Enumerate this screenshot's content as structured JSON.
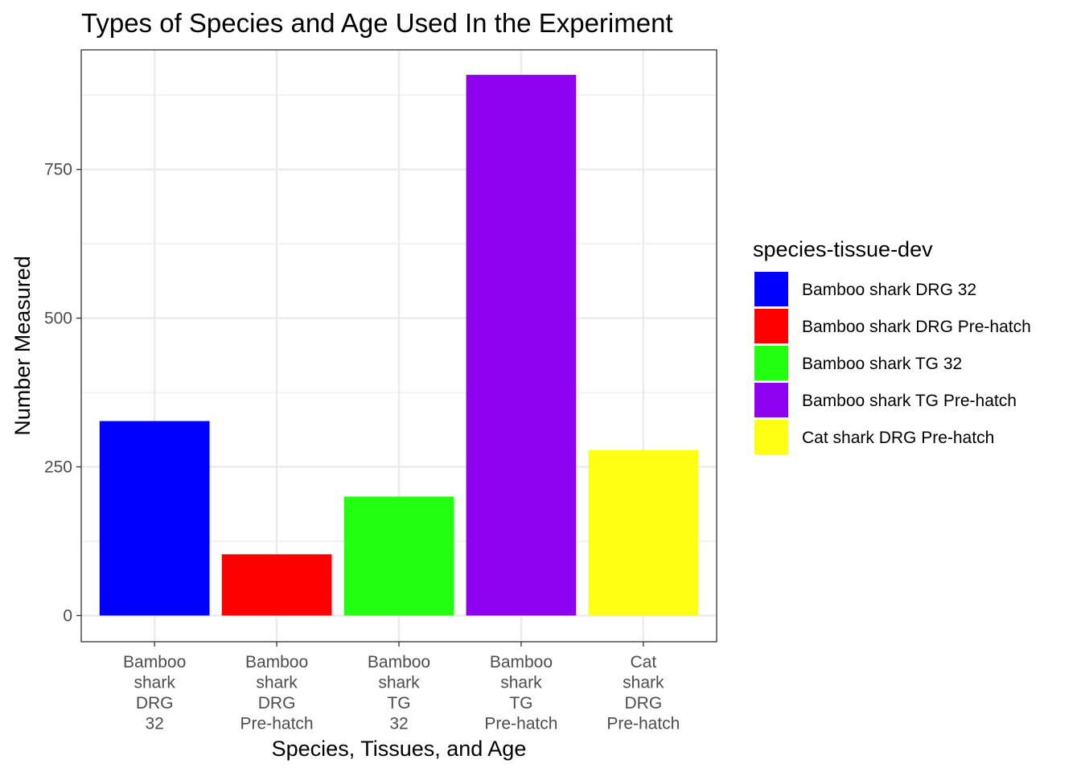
{
  "chart_data": {
    "type": "bar",
    "title": "Types of Species and Age Used In the Experiment",
    "xlabel": "Species, Tissues, and Age",
    "ylabel": "Number Measured",
    "categories": [
      "Bamboo shark DRG 32",
      "Bamboo shark DRG Pre-hatch",
      "Bamboo shark TG 32",
      "Bamboo shark TG Pre-hatch",
      "Cat shark DRG Pre-hatch"
    ],
    "category_tick_lines": [
      [
        "Bamboo",
        "shark",
        "DRG",
        "32"
      ],
      [
        "Bamboo",
        "shark",
        "DRG",
        "Pre-hatch"
      ],
      [
        "Bamboo",
        "shark",
        "TG",
        "32"
      ],
      [
        "Bamboo",
        "shark",
        "TG",
        "Pre-hatch"
      ],
      [
        "Cat",
        "shark",
        "DRG",
        "Pre-hatch"
      ]
    ],
    "values": [
      327,
      103,
      200,
      909,
      278
    ],
    "colors": [
      "#0000FF",
      "#FF0000",
      "#22FF11",
      "#8E00F0",
      "#FFFF11"
    ],
    "y_ticks": [
      0,
      250,
      500,
      750
    ],
    "ylim": [
      -44,
      951
    ],
    "grid": true,
    "legend": {
      "title": "species-tissue-dev",
      "position": "right",
      "entries": [
        "Bamboo shark DRG 32",
        "Bamboo shark DRG Pre-hatch",
        "Bamboo shark TG 32",
        "Bamboo shark TG Pre-hatch",
        "Cat shark DRG Pre-hatch"
      ]
    }
  }
}
